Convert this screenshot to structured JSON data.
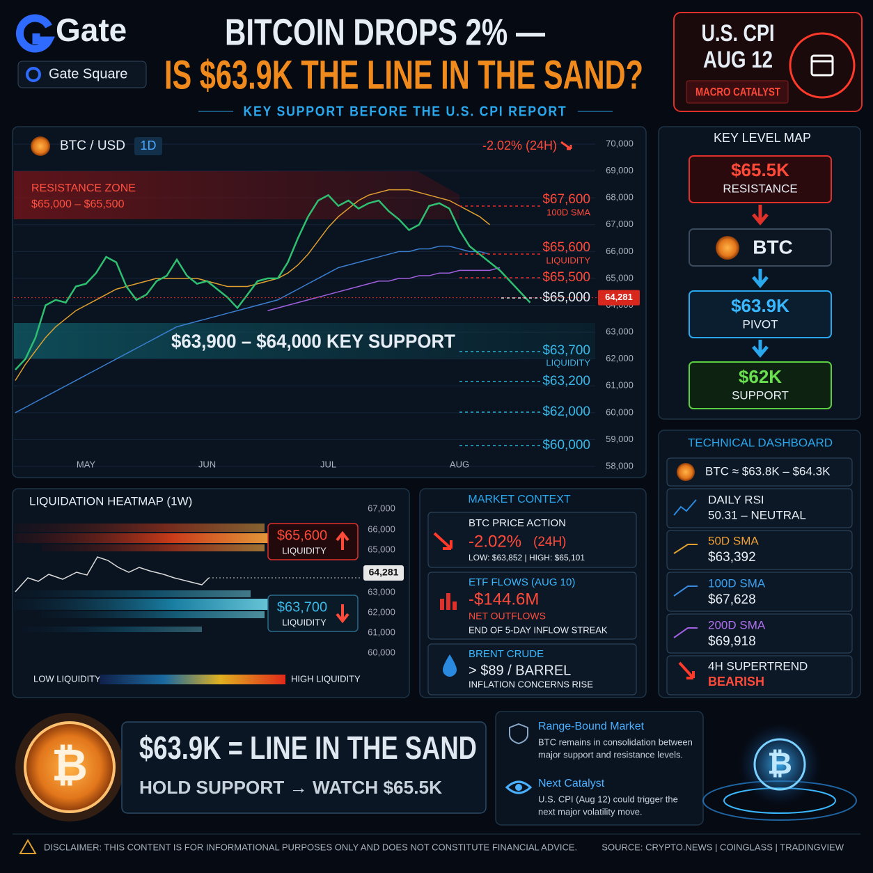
{
  "header": {
    "brand": "Gate",
    "badge": "Gate Square",
    "title_line1": "BITCOIN DROPS 2% —",
    "title_line2": "IS $63.9K THE LINE IN THE SAND?",
    "subtitle": "KEY SUPPORT BEFORE THE U.S. CPI REPORT"
  },
  "cpi_badge": {
    "line1": "U.S. CPI",
    "line2": "AUG 12",
    "tag": "MACRO CATALYST"
  },
  "chart_data": {
    "type": "line",
    "pair": "BTC / USD",
    "interval": "1D",
    "change": "-2.02% (24H)",
    "categories": [
      null,
      null,
      null,
      null,
      null,
      null,
      null,
      "MAY",
      null,
      null,
      null,
      null,
      null,
      null,
      null,
      null,
      null,
      null,
      null,
      "JUN",
      null,
      null,
      null,
      null,
      null,
      null,
      null,
      null,
      null,
      null,
      null,
      "JUL",
      null,
      null,
      null,
      null,
      null,
      null,
      null,
      null,
      null,
      null,
      null,
      null,
      "AUG",
      null,
      null,
      null,
      null,
      null,
      null,
      null
    ],
    "series": [
      {
        "color": "#2fbf71",
        "values": [
          61600,
          62000,
          62800,
          64000,
          64200,
          64100,
          64700,
          64800,
          65200,
          65800,
          65600,
          64700,
          64200,
          64400,
          64900,
          65100,
          65700,
          65100,
          64800,
          64900,
          64600,
          64300,
          63900,
          64400,
          64900,
          65000,
          65000,
          65600,
          66500,
          67300,
          67900,
          68100,
          67700,
          67900,
          67600,
          67800,
          67900,
          67500,
          67200,
          66800,
          67000,
          67700,
          67800,
          67600,
          66800,
          66200,
          65900,
          65600,
          65300,
          64900,
          64500,
          64100
        ]
      },
      {
        "color": "#e0a030",
        "values": [
          61200,
          61800,
          62300,
          62800,
          63200,
          63500,
          63800,
          64000,
          64200,
          64400,
          64600,
          64700,
          64800,
          64900,
          65000,
          65000,
          65000,
          65000,
          65000,
          64900,
          64800,
          64700,
          64700,
          64700,
          64800,
          64900,
          65000,
          65200,
          65500,
          65900,
          66400,
          66900,
          67300,
          67600,
          67900,
          68100,
          68200,
          68300,
          68300,
          68300,
          68200,
          68100,
          68000,
          67900,
          67700,
          67500,
          67300,
          67000,
          null,
          null,
          null,
          null
        ]
      },
      {
        "color": "#3a7fd0",
        "values": [
          60000,
          60200,
          60400,
          60600,
          60800,
          61000,
          61200,
          61400,
          61600,
          61800,
          62000,
          62200,
          62400,
          62600,
          62800,
          63000,
          63200,
          63300,
          63400,
          63500,
          63600,
          63700,
          63800,
          63900,
          64000,
          64100,
          64200,
          64400,
          64600,
          64800,
          65000,
          65200,
          65400,
          65500,
          65600,
          65700,
          65800,
          65900,
          66000,
          66000,
          66100,
          66100,
          66200,
          66200,
          66100,
          66000,
          66000,
          65900,
          null,
          null,
          null,
          null
        ]
      },
      {
        "color": "#a060e0",
        "values": [
          null,
          null,
          null,
          null,
          null,
          null,
          null,
          null,
          null,
          null,
          null,
          null,
          null,
          null,
          null,
          null,
          null,
          null,
          null,
          null,
          null,
          null,
          null,
          null,
          null,
          63800,
          63900,
          64000,
          64100,
          64200,
          64300,
          64400,
          64500,
          64600,
          64700,
          64800,
          64900,
          64900,
          65000,
          65000,
          65100,
          65100,
          65200,
          65200,
          65300,
          65300,
          65300,
          65300,
          65400,
          null,
          null,
          null
        ]
      }
    ],
    "ylim": [
      58000,
      70000
    ],
    "yticks": [
      {
        "value": 70000,
        "label": "70,000"
      },
      {
        "value": 69000,
        "label": "69,000"
      },
      {
        "value": 68000,
        "label": "68,000"
      },
      {
        "value": 67000,
        "label": "67,000"
      },
      {
        "value": 66000,
        "label": "66,000"
      },
      {
        "value": 65000,
        "label": "65,000"
      },
      {
        "value": 64000,
        "label": "64,000"
      },
      {
        "value": 63000,
        "label": "63,000"
      },
      {
        "value": 62000,
        "label": "62,000"
      },
      {
        "value": 61000,
        "label": "61,000"
      },
      {
        "value": 60000,
        "label": "60,000"
      },
      {
        "value": 59000,
        "label": "59,000"
      },
      {
        "value": 58000,
        "label": "58,000"
      }
    ],
    "grid": true,
    "current_price": {
      "value": 64281,
      "label": "64,281"
    },
    "resistance_zone": {
      "title": "RESISTANCE ZONE",
      "range": "$65,000 – $65,500"
    },
    "support_zone": "$63,900 – $64,000 KEY SUPPORT",
    "levels": [
      {
        "price": "$67,600",
        "note": "100D SMA"
      },
      {
        "price": "$65,600",
        "note": "LIQUIDITY"
      },
      {
        "price": "$65,500"
      },
      {
        "price": "$65,000"
      },
      {
        "price": "$63,700",
        "note": "LIQUIDITY"
      },
      {
        "price": "$63,200"
      },
      {
        "price": "$62,000"
      },
      {
        "price": "$60,000"
      }
    ]
  },
  "key_level_map": {
    "title": "KEY LEVEL MAP",
    "resistance": {
      "price": "$65.5K",
      "label": "RESISTANCE"
    },
    "btc": "BTC",
    "pivot": {
      "price": "$63.9K",
      "label": "PIVOT"
    },
    "support": {
      "price": "$62K",
      "label": "SUPPORT"
    }
  },
  "technical_dashboard": {
    "title": "TECHNICAL DASHBOARD",
    "range": "BTC ≈ $63.8K – $64.3K",
    "rows": [
      {
        "label": "DAILY RSI",
        "value": "50.31 – NEUTRAL"
      },
      {
        "label": "50D SMA",
        "value": "$63,392"
      },
      {
        "label": "100D SMA",
        "value": "$67,628"
      },
      {
        "label": "200D SMA",
        "value": "$69,918"
      },
      {
        "label": "4H SUPERTREND",
        "value": "BEARISH"
      }
    ]
  },
  "heatmap": {
    "title": "LIQUIDATION HEATMAP (1W)",
    "axis_labels": [
      "67,000",
      "66,000",
      "65,000",
      "64,281",
      "63,000",
      "62,000",
      "61,000",
      "60,000"
    ],
    "upper": {
      "price": "$65,600",
      "label": "LIQUIDITY"
    },
    "lower": {
      "price": "$63,700",
      "label": "LIQUIDITY"
    },
    "legend_low": "LOW LIQUIDITY",
    "legend_high": "HIGH LIQUIDITY"
  },
  "market_context": {
    "title": "MARKET CONTEXT",
    "price_action": {
      "title": "BTC PRICE ACTION",
      "change": "-2.02%",
      "period": "(24H)",
      "range": "LOW: $63,852  |  HIGH: $65,101"
    },
    "etf": {
      "title": "ETF FLOWS (AUG 10)",
      "value": "-$144.6M",
      "label": "NET OUTFLOWS",
      "note": "END OF 5-DAY INFLOW STREAK"
    },
    "brent": {
      "title": "BRENT CRUDE",
      "value": "> $89 / BARREL",
      "note": "INFLATION CONCERNS RISE"
    }
  },
  "banner": {
    "headline": "$63.9K = LINE IN THE SAND",
    "sub": "HOLD SUPPORT → WATCH $65.5K"
  },
  "notes": [
    {
      "title": "Range-Bound Market",
      "line1": "BTC remains in consolidation between",
      "line2": "major support and resistance levels."
    },
    {
      "title": "Next Catalyst",
      "line1": "U.S. CPI (Aug 12) could trigger the",
      "line2": "next major volatility move."
    }
  ],
  "footer": {
    "disclaimer": "DISCLAIMER: THIS CONTENT IS FOR INFORMATIONAL PURPOSES ONLY AND DOES NOT CONSTITUTE FINANCIAL ADVICE.",
    "sources": "SOURCE: CRYPTO.NEWS  |  COINGLASS  |  TRADINGVIEW"
  }
}
